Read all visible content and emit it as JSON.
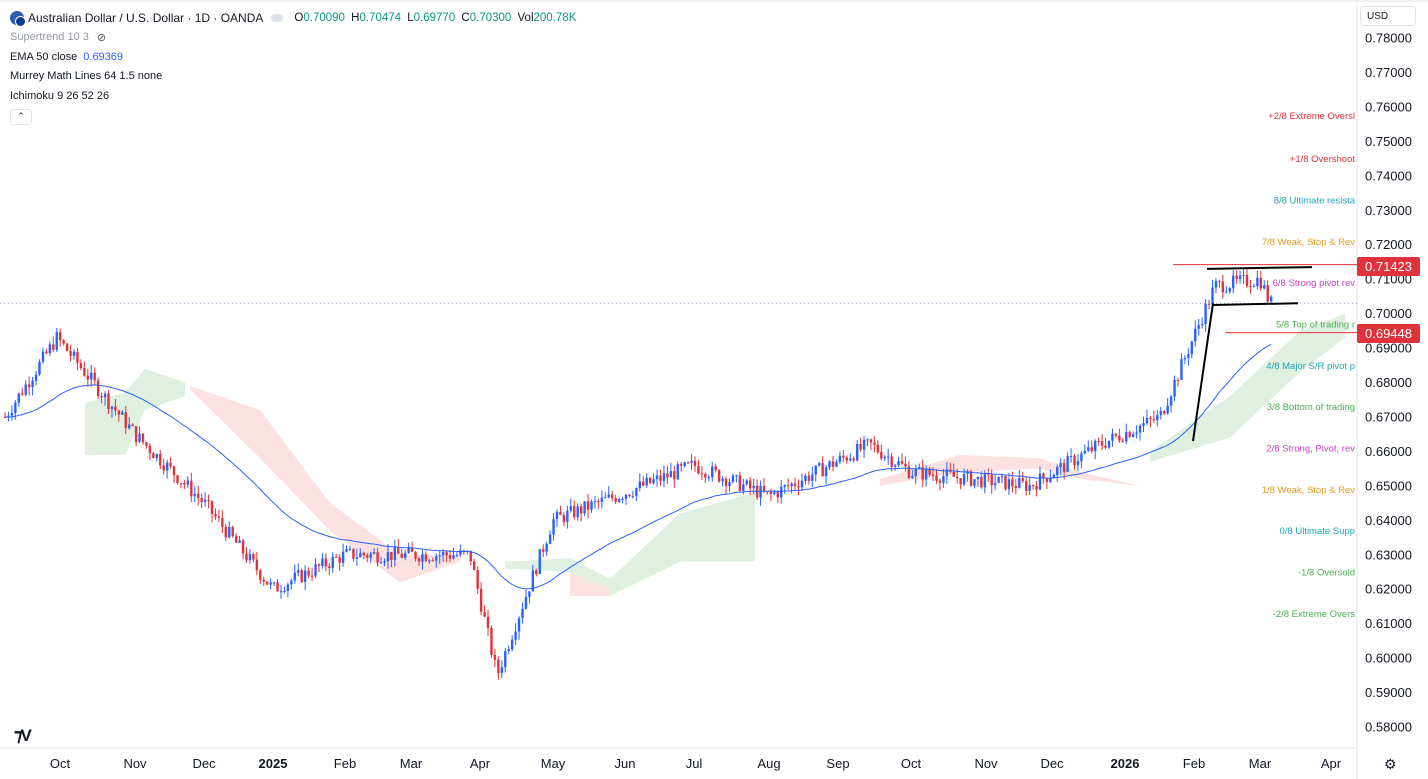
{
  "header": {
    "symbol_title": "Australian Dollar / U.S. Dollar · 1D · OANDA",
    "ohlc": [
      {
        "label": "O",
        "value": "0.70090"
      },
      {
        "label": "H",
        "value": "0.70474"
      },
      {
        "label": "L",
        "value": "0.69770"
      },
      {
        "label": "C",
        "value": "0.70300"
      },
      {
        "label": "Vol",
        "value": "200.78K"
      }
    ]
  },
  "indicators": {
    "supertrend": "Supertrend 10 3",
    "ema_label": "EMA 50 close",
    "ema_value": "0.69369",
    "murrey": "Murrey Math Lines 64 1.5 none",
    "ichimoku": "Ichimoku 9 26 52 26",
    "collapse_glyph": "⌃"
  },
  "currency_selector": "USD",
  "price_badges": {
    "upper": "0.71423",
    "lower": "0.69448"
  },
  "colors": {
    "up": "#2962ff",
    "down": "#e0323a",
    "ema": "#2962ff",
    "cloud_bull": "#dff0e0",
    "cloud_bear": "#fbe1df"
  },
  "murrey_labels": [
    {
      "text": "+2/8 Extreme Oversl",
      "price": 0.7575,
      "color": "#e0323a"
    },
    {
      "text": "+1/8 Overshoot",
      "price": 0.745,
      "color": "#e0323a"
    },
    {
      "text": "8/8 Ultimate resista",
      "price": 0.733,
      "color": "#22a6b3"
    },
    {
      "text": "7/8 Weak, Stop & Rev",
      "price": 0.721,
      "color": "#e39a1c"
    },
    {
      "text": "6/8 Strong pivot rev",
      "price": 0.709,
      "color": "#c840c8"
    },
    {
      "text": "5/8 Top of trading r",
      "price": 0.697,
      "color": "#4caf50"
    },
    {
      "text": "4/8 Major S/R pivot p",
      "price": 0.685,
      "color": "#22a6b3"
    },
    {
      "text": "3/8 Bottom of trading",
      "price": 0.673,
      "color": "#4caf50"
    },
    {
      "text": "2/8 Strong, Pivot, rev",
      "price": 0.661,
      "color": "#c840c8"
    },
    {
      "text": "1/8 Weak, Stop & Rev",
      "price": 0.649,
      "color": "#e39a1c"
    },
    {
      "text": "0/8 Ultimate Supp",
      "price": 0.637,
      "color": "#22a6b3"
    },
    {
      "text": "-1/8 Oversold",
      "price": 0.625,
      "color": "#4caf50"
    },
    {
      "text": "-2/8 Extreme Overs",
      "price": 0.613,
      "color": "#4caf50"
    }
  ],
  "chart_data": {
    "type": "candlestick",
    "y_axis_ticks": [
      "0.78000",
      "0.77000",
      "0.76000",
      "0.75000",
      "0.74000",
      "0.73000",
      "0.72000",
      "0.71000",
      "0.70000",
      "0.69000",
      "0.68000",
      "0.67000",
      "0.66000",
      "0.65000",
      "0.64000",
      "0.63000",
      "0.62000",
      "0.61000",
      "0.60000",
      "0.59000",
      "0.58000"
    ],
    "ylim": [
      0.58,
      0.78
    ],
    "x_axis_ticks": [
      {
        "label": "Oct",
        "bold": false
      },
      {
        "label": "Nov",
        "bold": false
      },
      {
        "label": "Dec",
        "bold": false
      },
      {
        "label": "2025",
        "bold": true
      },
      {
        "label": "Feb",
        "bold": false
      },
      {
        "label": "Mar",
        "bold": false
      },
      {
        "label": "Apr",
        "bold": false
      },
      {
        "label": "May",
        "bold": false
      },
      {
        "label": "Jun",
        "bold": false
      },
      {
        "label": "Jul",
        "bold": false
      },
      {
        "label": "Aug",
        "bold": false
      },
      {
        "label": "Sep",
        "bold": false
      },
      {
        "label": "Oct",
        "bold": false
      },
      {
        "label": "Nov",
        "bold": false
      },
      {
        "label": "Dec",
        "bold": false
      },
      {
        "label": "2026",
        "bold": true
      },
      {
        "label": "Feb",
        "bold": false
      },
      {
        "label": "Mar",
        "bold": false
      },
      {
        "label": "Apr",
        "bold": false
      }
    ],
    "series": [
      {
        "name": "AUD/USD",
        "monthly_close": [
          0.672,
          0.678,
          0.66,
          0.646,
          0.619,
          0.624,
          0.625,
          0.63,
          0.641,
          0.648,
          0.656,
          0.647,
          0.655,
          0.657,
          0.65,
          0.654,
          0.668,
          0.703,
          0.703
        ]
      },
      {
        "name": "EMA 50 close",
        "value": 0.69369
      }
    ],
    "anchor_points": [
      {
        "x": "Oct",
        "price": 0.67
      },
      {
        "x": "Oct",
        "price": 0.693
      },
      {
        "x": "Nov",
        "price": 0.665
      },
      {
        "x": "Dec",
        "price": 0.645
      },
      {
        "x": "2025",
        "price": 0.62
      },
      {
        "x": "Feb",
        "price": 0.63
      },
      {
        "x": "Mar",
        "price": 0.63
      },
      {
        "x": "Apr",
        "price": 0.63
      },
      {
        "x": "Apr",
        "price": 0.595
      },
      {
        "x": "May",
        "price": 0.64
      },
      {
        "x": "Jun",
        "price": 0.648
      },
      {
        "x": "Jul",
        "price": 0.656
      },
      {
        "x": "Aug",
        "price": 0.647
      },
      {
        "x": "Sep",
        "price": 0.662
      },
      {
        "x": "Oct",
        "price": 0.654
      },
      {
        "x": "Nov",
        "price": 0.65
      },
      {
        "x": "Dec",
        "price": 0.662
      },
      {
        "x": "2026",
        "price": 0.67
      },
      {
        "x": "Feb",
        "price": 0.708
      },
      {
        "x": "Mar",
        "price": 0.71
      },
      {
        "x": "Mar",
        "price": 0.703
      }
    ],
    "current_price": 0.703,
    "horizontal_lines": [
      0.71423,
      0.69448
    ],
    "annotations": [
      "ascending trendline",
      "consolidation flag"
    ]
  }
}
